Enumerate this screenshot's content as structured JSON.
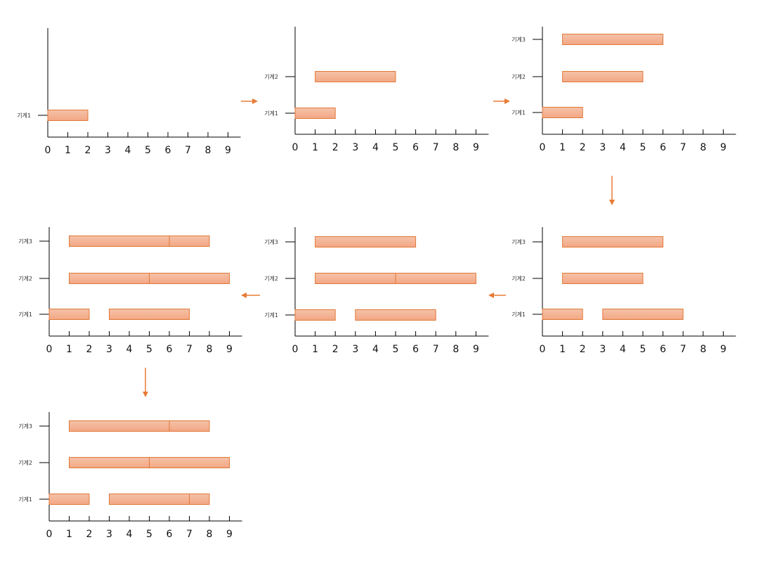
{
  "colors": {
    "bar_fill_top": "#f4c2a8",
    "bar_fill_bottom": "#f3a784",
    "bar_stroke": "#e07838",
    "axis": "#000000",
    "arrow": "#e87b35",
    "label": "#333333"
  },
  "axis_ticks": [
    "0",
    "1",
    "2",
    "3",
    "4",
    "5",
    "6",
    "7",
    "8",
    "9"
  ],
  "machine_labels": [
    "기계1",
    "기계2",
    "기계3"
  ],
  "arrow_icon": "orange-arrow-icon",
  "charts": [
    {
      "id": "step-1",
      "machines": [
        {
          "label": "기계1",
          "segments": [
            [
              0,
              2
            ]
          ]
        }
      ]
    },
    {
      "id": "step-2",
      "machines": [
        {
          "label": "기계1",
          "segments": [
            [
              0,
              2
            ]
          ]
        },
        {
          "label": "기계2",
          "segments": [
            [
              1,
              5
            ]
          ]
        }
      ]
    },
    {
      "id": "step-3",
      "machines": [
        {
          "label": "기계1",
          "segments": [
            [
              0,
              2
            ]
          ]
        },
        {
          "label": "기계2",
          "segments": [
            [
              1,
              5
            ]
          ]
        },
        {
          "label": "기계3",
          "segments": [
            [
              1,
              6
            ]
          ]
        }
      ]
    },
    {
      "id": "step-4",
      "machines": [
        {
          "label": "기계1",
          "segments": [
            [
              0,
              2
            ],
            [
              3,
              7
            ]
          ]
        },
        {
          "label": "기계2",
          "segments": [
            [
              1,
              5
            ]
          ]
        },
        {
          "label": "기계3",
          "segments": [
            [
              1,
              6
            ]
          ]
        }
      ]
    },
    {
      "id": "step-5",
      "machines": [
        {
          "label": "기계1",
          "segments": [
            [
              0,
              2
            ],
            [
              3,
              7
            ]
          ]
        },
        {
          "label": "기계2",
          "segments": [
            [
              1,
              5
            ],
            [
              5,
              9
            ]
          ]
        },
        {
          "label": "기계3",
          "segments": [
            [
              1,
              6
            ]
          ]
        }
      ]
    },
    {
      "id": "step-6",
      "machines": [
        {
          "label": "기계1",
          "segments": [
            [
              0,
              2
            ],
            [
              3,
              7
            ]
          ]
        },
        {
          "label": "기계2",
          "segments": [
            [
              1,
              5
            ],
            [
              5,
              9
            ]
          ]
        },
        {
          "label": "기계3",
          "segments": [
            [
              1,
              6
            ],
            [
              6,
              8
            ]
          ]
        }
      ]
    },
    {
      "id": "step-7",
      "machines": [
        {
          "label": "기계1",
          "segments": [
            [
              0,
              2
            ],
            [
              3,
              7
            ],
            [
              7,
              8
            ]
          ]
        },
        {
          "label": "기계2",
          "segments": [
            [
              1,
              5
            ],
            [
              5,
              9
            ]
          ]
        },
        {
          "label": "기계3",
          "segments": [
            [
              1,
              6
            ],
            [
              6,
              8
            ]
          ]
        }
      ]
    }
  ]
}
